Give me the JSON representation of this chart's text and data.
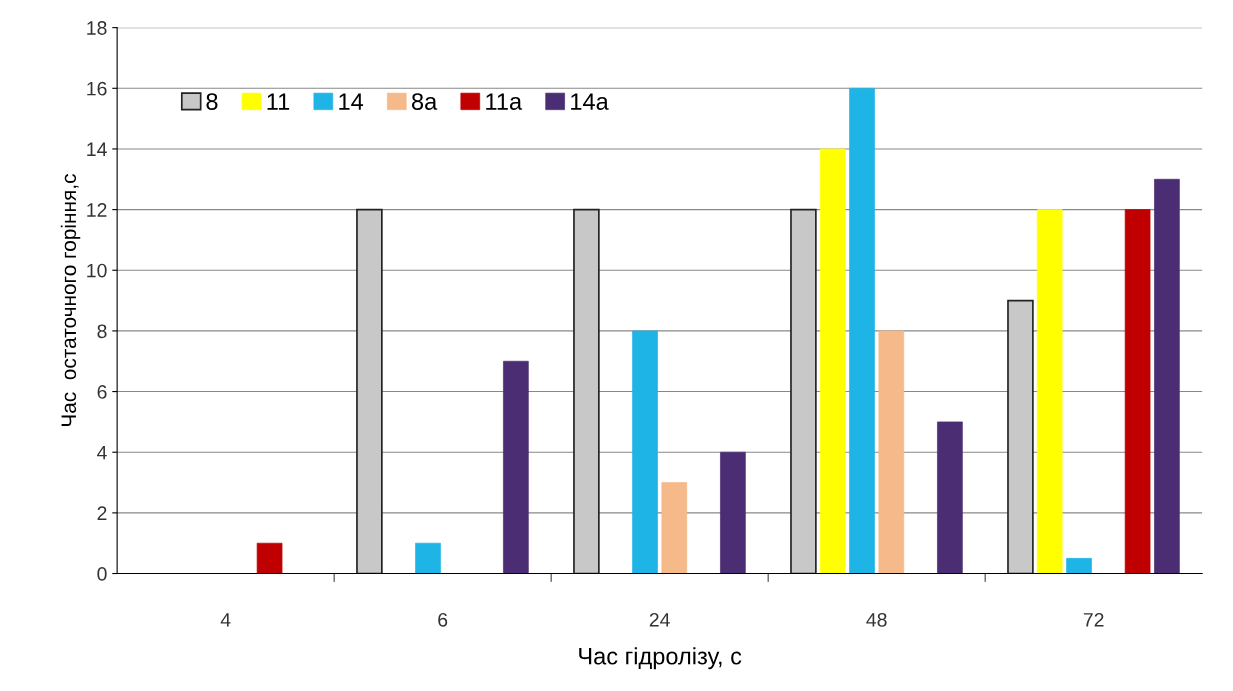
{
  "chart_data": {
    "type": "bar",
    "xlabel": "Час гідролізу, с",
    "ylabel": "Час  остаточного горіння,с",
    "categories": [
      "4",
      "6",
      "24",
      "48",
      "72"
    ],
    "series": [
      {
        "name": "8",
        "color": "#c8c8c8",
        "values": [
          null,
          12,
          12,
          12,
          9
        ]
      },
      {
        "name": "11",
        "color": "#ffff00",
        "values": [
          null,
          null,
          null,
          14,
          12
        ]
      },
      {
        "name": "14",
        "color": "#1eb4e6",
        "values": [
          null,
          1,
          8,
          16,
          0.5
        ]
      },
      {
        "name": "8a",
        "color": "#f5b98a",
        "values": [
          null,
          null,
          3,
          8,
          null
        ]
      },
      {
        "name": "11a",
        "color": "#c00000",
        "values": [
          1,
          null,
          null,
          null,
          12
        ]
      },
      {
        "name": "14a",
        "color": "#4b2d73",
        "values": [
          null,
          7,
          4,
          5,
          13
        ]
      }
    ],
    "ylim": [
      0,
      18
    ],
    "yticks": [
      0,
      2,
      4,
      6,
      8,
      10,
      12,
      14,
      16,
      18
    ],
    "grid": "y",
    "legend": "top left"
  }
}
